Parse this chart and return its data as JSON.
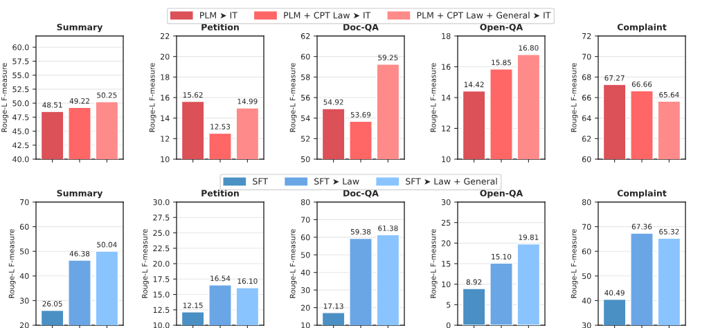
{
  "chart_data": [
    {
      "type": "bar",
      "title": "Summary",
      "ylabel": "Rouge-L F-measure",
      "categories": [
        null,
        null,
        null
      ],
      "series": [
        {
          "color": "#dc5057",
          "values": [
            48.51,
            null,
            null
          ],
          "value_labels": [
            "48.51",
            null,
            null
          ]
        },
        {
          "color": "#ff6666",
          "values": [
            null,
            49.22,
            null
          ],
          "value_labels": [
            null,
            "49.22",
            null
          ]
        },
        {
          "color": "#ff8a8a",
          "values": [
            null,
            null,
            50.25
          ],
          "value_labels": [
            null,
            null,
            "50.25"
          ]
        }
      ],
      "ylim": [
        40,
        62
      ],
      "yticks": [
        {
          "value": 40,
          "label": "40.0"
        },
        {
          "value": 42.5,
          "label": "42.5"
        },
        {
          "value": 45,
          "label": "45.0"
        },
        {
          "value": 47.5,
          "label": "47.5"
        },
        {
          "value": 50,
          "label": "50.0"
        },
        {
          "value": 52.5,
          "label": "52.5"
        },
        {
          "value": 55,
          "label": "55.0"
        },
        {
          "value": 57.5,
          "label": "57.5"
        },
        {
          "value": 60,
          "label": "60.0"
        }
      ],
      "grid": "y",
      "tick_labels": "y"
    },
    {
      "type": "bar",
      "title": "Petition",
      "ylabel": "Rouge-L F-measure",
      "categories": [
        null,
        null,
        null
      ],
      "series": [
        {
          "color": "#dc5057",
          "values": [
            15.62,
            null,
            null
          ],
          "value_labels": [
            "15.62",
            null,
            null
          ]
        },
        {
          "color": "#ff6666",
          "values": [
            null,
            12.53,
            null
          ],
          "value_labels": [
            null,
            "12.53",
            null
          ]
        },
        {
          "color": "#ff8a8a",
          "values": [
            null,
            null,
            14.99
          ],
          "value_labels": [
            null,
            null,
            "14.99"
          ]
        }
      ],
      "ylim": [
        10,
        22
      ],
      "yticks": [
        10,
        12,
        14,
        16,
        18,
        20,
        22
      ],
      "grid": "y",
      "tick_labels": "y"
    },
    {
      "type": "bar",
      "title": "Doc-QA",
      "ylabel": "Rouge-L F-measure",
      "categories": [
        null,
        null,
        null
      ],
      "series": [
        {
          "name": "PLM ➤ IT",
          "color": "#dc5057",
          "values": [
            54.92,
            null,
            null
          ],
          "value_labels": [
            "54.92",
            null,
            null
          ]
        },
        {
          "name": "PLM + CPT Law ➤ IT",
          "color": "#ff6666",
          "values": [
            null,
            53.69,
            null
          ],
          "value_labels": [
            null,
            "53.69",
            null
          ]
        },
        {
          "name": "PLM + CPT Law + General ➤ IT",
          "color": "#ff8a8a",
          "values": [
            null,
            null,
            59.25
          ],
          "value_labels": [
            null,
            null,
            "59.25"
          ]
        }
      ],
      "ylim": [
        50,
        62
      ],
      "yticks": [
        50,
        52,
        54,
        56,
        58,
        60,
        62
      ],
      "grid": "y",
      "tick_labels": "y",
      "legend": "top"
    },
    {
      "type": "bar",
      "title": "Open-QA",
      "ylabel": "Rouge-L F-measure",
      "categories": [
        null,
        null,
        null
      ],
      "series": [
        {
          "color": "#dc5057",
          "values": [
            14.42,
            null,
            null
          ],
          "value_labels": [
            "14.42",
            null,
            null
          ]
        },
        {
          "color": "#ff6666",
          "values": [
            null,
            15.85,
            null
          ],
          "value_labels": [
            null,
            "15.85",
            null
          ]
        },
        {
          "color": "#ff8a8a",
          "values": [
            null,
            null,
            16.8
          ],
          "value_labels": [
            null,
            null,
            "16.80"
          ]
        }
      ],
      "ylim": [
        10,
        18
      ],
      "yticks": [
        10,
        12,
        14,
        16,
        18
      ],
      "grid": "y",
      "tick_labels": "y"
    },
    {
      "type": "bar",
      "title": "Complaint",
      "ylabel": "Rouge-L F-measure",
      "categories": [
        null,
        null,
        null
      ],
      "series": [
        {
          "color": "#dc5057",
          "values": [
            67.27,
            null,
            null
          ],
          "value_labels": [
            "67.27",
            null,
            null
          ]
        },
        {
          "color": "#ff6666",
          "values": [
            null,
            66.66,
            null
          ],
          "value_labels": [
            null,
            "66.66",
            null
          ]
        },
        {
          "color": "#ff8a8a",
          "values": [
            null,
            null,
            65.64
          ],
          "value_labels": [
            null,
            null,
            "65.64"
          ]
        }
      ],
      "ylim": [
        60,
        72
      ],
      "yticks": [
        60,
        62,
        64,
        66,
        68,
        70,
        72
      ],
      "grid": "y",
      "tick_labels": "y"
    },
    {
      "type": "bar",
      "title": "Summary",
      "ylabel": "Rouge-L F-measure",
      "categories": [
        null,
        null,
        null
      ],
      "series": [
        {
          "color": "#4a90c4",
          "values": [
            26.05,
            null,
            null
          ],
          "value_labels": [
            "26.05",
            null,
            null
          ]
        },
        {
          "color": "#6aa6e6",
          "values": [
            null,
            46.38,
            null
          ],
          "value_labels": [
            null,
            "46.38",
            null
          ]
        },
        {
          "color": "#8ac4ff",
          "values": [
            null,
            null,
            50.04
          ],
          "value_labels": [
            null,
            null,
            "50.04"
          ]
        }
      ],
      "ylim": [
        20,
        70
      ],
      "yticks": [
        20,
        30,
        40,
        50,
        60,
        70
      ],
      "grid": "y",
      "tick_labels": "y"
    },
    {
      "type": "bar",
      "title": "Petition",
      "ylabel": "Rouge-L F-measure",
      "categories": [
        null,
        null,
        null
      ],
      "series": [
        {
          "color": "#4a90c4",
          "values": [
            12.15,
            null,
            null
          ],
          "value_labels": [
            "12.15",
            null,
            null
          ]
        },
        {
          "color": "#6aa6e6",
          "values": [
            null,
            16.54,
            null
          ],
          "value_labels": [
            null,
            "16.54",
            null
          ]
        },
        {
          "color": "#8ac4ff",
          "values": [
            null,
            null,
            16.1
          ],
          "value_labels": [
            null,
            null,
            "16.10"
          ]
        }
      ],
      "ylim": [
        10,
        30
      ],
      "yticks": [
        {
          "value": 10,
          "label": "10.0"
        },
        {
          "value": 12.5,
          "label": "12.5"
        },
        {
          "value": 15,
          "label": "15.0"
        },
        {
          "value": 17.5,
          "label": "17.5"
        },
        {
          "value": 20,
          "label": "20.0"
        },
        {
          "value": 22.5,
          "label": "22.5"
        },
        {
          "value": 25,
          "label": "25.0"
        },
        {
          "value": 27.5,
          "label": "27.5"
        },
        {
          "value": 30,
          "label": "30.0"
        }
      ],
      "grid": "y",
      "tick_labels": "y"
    },
    {
      "type": "bar",
      "title": "Doc-QA",
      "ylabel": "Rouge-L F-measure",
      "categories": [
        null,
        null,
        null
      ],
      "series": [
        {
          "name": "SFT",
          "color": "#4a90c4",
          "values": [
            17.13,
            null,
            null
          ],
          "value_labels": [
            "17.13",
            null,
            null
          ]
        },
        {
          "name": "SFT ➤ Law",
          "color": "#6aa6e6",
          "values": [
            null,
            59.38,
            null
          ],
          "value_labels": [
            null,
            "59.38",
            null
          ]
        },
        {
          "name": "SFT ➤ Law + General",
          "color": "#8ac4ff",
          "values": [
            null,
            null,
            61.38
          ],
          "value_labels": [
            null,
            null,
            "61.38"
          ]
        }
      ],
      "ylim": [
        10,
        80
      ],
      "yticks": [
        10,
        20,
        30,
        40,
        50,
        60,
        70,
        80
      ],
      "grid": "y",
      "tick_labels": "y",
      "legend": "top"
    },
    {
      "type": "bar",
      "title": "Open-QA",
      "ylabel": "Rouge-L F-measure",
      "categories": [
        null,
        null,
        null
      ],
      "series": [
        {
          "color": "#4a90c4",
          "values": [
            8.92,
            null,
            null
          ],
          "value_labels": [
            "8.92",
            null,
            null
          ]
        },
        {
          "color": "#6aa6e6",
          "values": [
            null,
            15.1,
            null
          ],
          "value_labels": [
            null,
            "15.10",
            null
          ]
        },
        {
          "color": "#8ac4ff",
          "values": [
            null,
            null,
            19.81
          ],
          "value_labels": [
            null,
            null,
            "19.81"
          ]
        }
      ],
      "ylim": [
        0,
        30
      ],
      "yticks": [
        0,
        5,
        10,
        15,
        20,
        25,
        30
      ],
      "grid": "y",
      "tick_labels": "y"
    },
    {
      "type": "bar",
      "title": "Complaint",
      "ylabel": "Rouge-L F-measure",
      "categories": [
        null,
        null,
        null
      ],
      "series": [
        {
          "color": "#4a90c4",
          "values": [
            40.49,
            null,
            null
          ],
          "value_labels": [
            "40.49",
            null,
            null
          ]
        },
        {
          "color": "#6aa6e6",
          "values": [
            null,
            67.36,
            null
          ],
          "value_labels": [
            null,
            "67.36",
            null
          ]
        },
        {
          "color": "#8ac4ff",
          "values": [
            null,
            null,
            65.32
          ],
          "value_labels": [
            null,
            null,
            "65.32"
          ]
        }
      ],
      "ylim": [
        30,
        80
      ],
      "yticks": [
        30,
        40,
        50,
        60,
        70,
        80
      ],
      "grid": "y",
      "tick_labels": "y"
    }
  ]
}
